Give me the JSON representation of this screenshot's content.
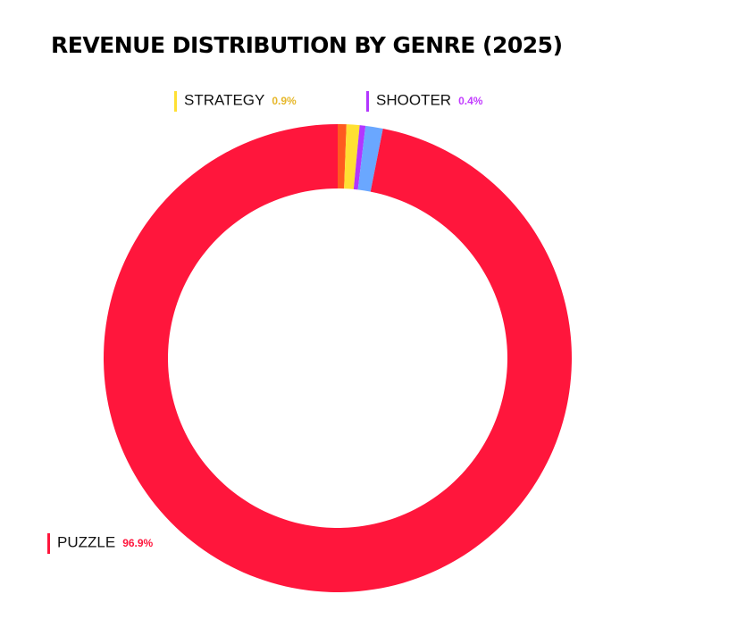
{
  "chart_data": {
    "type": "donut",
    "title": "REVENUE DISTRIBUTION BY GENRE (2025)",
    "categories": [
      null,
      "STRATEGY",
      "SHOOTER",
      null,
      "PUZZLE"
    ],
    "values": [
      0.6,
      0.9,
      0.4,
      1.2,
      96.9
    ],
    "value_labels": [
      null,
      "0.9%",
      "0.4%",
      null,
      "96.9%"
    ],
    "colors": [
      "#ff5a1f",
      "#ffe033",
      "#b236ff",
      "#6aa7ff",
      "#ff163c"
    ],
    "label_colors": [
      null,
      "#e6b72a",
      "#c23cff",
      null,
      "#ff163c"
    ]
  }
}
